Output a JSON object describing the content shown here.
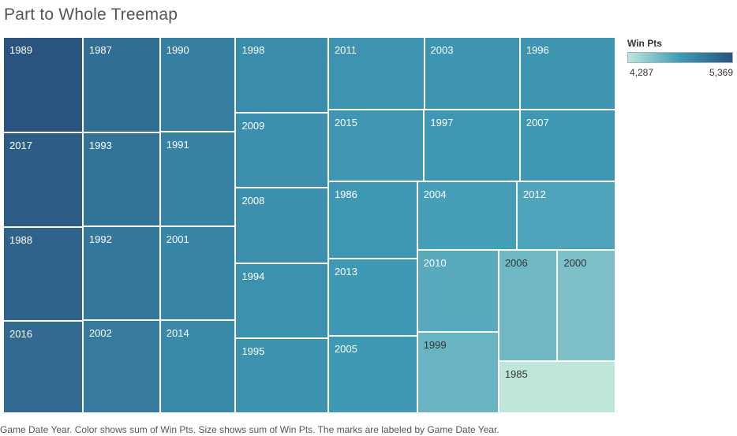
{
  "chart_data": {
    "type": "treemap",
    "title": "Part to Whole Treemap",
    "caption": "Game Date Year.  Color shows sum of Win Pts.  Size shows sum of Win Pts.  The marks are labeled by Game Date Year.",
    "legend": {
      "title": "Win Pts",
      "min_label": "4,287",
      "max_label": "5,369",
      "min": 4287,
      "max": 5369,
      "color_low": "#bfe6da",
      "color_mid": "#3f9bb6",
      "color_high": "#2a537f",
      "placement": "top-right"
    },
    "items": [
      {
        "label": "1989",
        "value": 5369
      },
      {
        "label": "2017",
        "value": 5291
      },
      {
        "label": "1988",
        "value": 5252
      },
      {
        "label": "2016",
        "value": 5200
      },
      {
        "label": "1987",
        "value": 5175
      },
      {
        "label": "1993",
        "value": 5130
      },
      {
        "label": "1992",
        "value": 5095
      },
      {
        "label": "2002",
        "value": 5065
      },
      {
        "label": "1990",
        "value": 5040
      },
      {
        "label": "1991",
        "value": 5015
      },
      {
        "label": "2001",
        "value": 4990
      },
      {
        "label": "2014",
        "value": 4965
      },
      {
        "label": "1998",
        "value": 4940
      },
      {
        "label": "2009",
        "value": 4925
      },
      {
        "label": "2008",
        "value": 4915
      },
      {
        "label": "1994",
        "value": 4905
      },
      {
        "label": "1995",
        "value": 4895
      },
      {
        "label": "2011",
        "value": 4885
      },
      {
        "label": "2003",
        "value": 4875
      },
      {
        "label": "1996",
        "value": 4870
      },
      {
        "label": "2015",
        "value": 4865
      },
      {
        "label": "1997",
        "value": 4860
      },
      {
        "label": "2007",
        "value": 4855
      },
      {
        "label": "1986",
        "value": 4850
      },
      {
        "label": "2013",
        "value": 4845
      },
      {
        "label": "2005",
        "value": 4840
      },
      {
        "label": "2004",
        "value": 4800
      },
      {
        "label": "2012",
        "value": 4760
      },
      {
        "label": "2010",
        "value": 4720
      },
      {
        "label": "1999",
        "value": 4650
      },
      {
        "label": "2006",
        "value": 4620
      },
      {
        "label": "2000",
        "value": 4560
      },
      {
        "label": "1985",
        "value": 4287
      }
    ]
  }
}
